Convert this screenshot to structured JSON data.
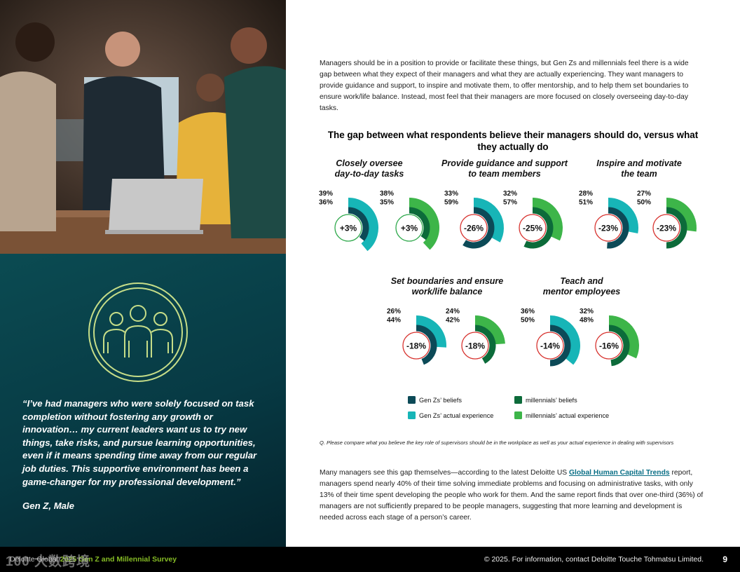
{
  "intro_text": "Managers should be in a position to provide or facilitate these things, but Gen Zs and millennials feel there is a wide gap between what they expect of their managers and what they are actually experiencing. They want managers to provide guidance and support, to inspire and motivate them, to offer mentorship, and to help them set boundaries to ensure work/life balance. Instead, most feel that their managers are more focused on closely overseeing day-to-day tasks.",
  "quote": "“I’ve had managers who were solely focused on task completion without fostering any growth or innovation… my current leaders want us to try new things, take risks, and pursue learning opportunities, even if it means spending time away from our regular job duties. This supportive environment has been a game-changer for my professional development.”",
  "quote_attribution": "Gen Z, Male",
  "question_note": "Q. Please compare what you believe the key role of supervisors should be in the workplace as well as your actual experience in dealing with supervisors",
  "closing": {
    "before_link": "Many managers see this gap themselves—according to the latest Deloitte US ",
    "link_text": "Global Human Capital Trends",
    "after_link": " report, managers spend nearly 40% of their time solving immediate problems and focusing on administrative tasks, with only 13% of their time spent developing the people who work for them. And the same report finds that over one-third (36%) of managers are not sufficiently prepared to be people managers, suggesting that more learning and development is needed across each stage of a person’s career."
  },
  "footer": {
    "brand": "Deloitte Global",
    "survey": "2025 Gen Z and Millennial Survey",
    "copyright": "© 2025. For information, contact Deloitte Touche Tohmatsu Limited.",
    "page": "9"
  },
  "watermark": "100 大数跨境",
  "colors": {
    "genz_beliefs": "#0c4a57",
    "genz_actual": "#17b5b7",
    "mill_beliefs": "#0c6b3a",
    "mill_actual": "#3db549",
    "positive_ring": "#2da84a",
    "negative_ring": "#d7322e",
    "left_panel": "#073a44",
    "icon_stroke": "#c6dd88"
  },
  "chart_data": {
    "type": "radial_bar",
    "title": "The gap between what respondents believe their managers should do, versus what they actually do",
    "max_value": 100,
    "legend": [
      {
        "key": "genz_beliefs",
        "label": "Gen Zs’ beliefs"
      },
      {
        "key": "mill_beliefs",
        "label": "millennials’ beliefs"
      },
      {
        "key": "genz_actual",
        "label": "Gen Zs’ actual experience"
      },
      {
        "key": "mill_actual",
        "label": "millennials’ actual experience"
      }
    ],
    "groups": [
      {
        "title": [
          "Closely oversee",
          "day-to-day tasks"
        ],
        "gen_z": {
          "actual": 39,
          "beliefs": 36,
          "gap": "+3%"
        },
        "millennials": {
          "actual": 38,
          "beliefs": 35,
          "gap": "+3%"
        }
      },
      {
        "title": [
          "Provide guidance and support",
          "to team members"
        ],
        "gen_z": {
          "actual": 33,
          "beliefs": 59,
          "gap": "-26%"
        },
        "millennials": {
          "actual": 32,
          "beliefs": 57,
          "gap": "-25%"
        }
      },
      {
        "title": [
          "Inspire and motivate",
          "the team"
        ],
        "gen_z": {
          "actual": 28,
          "beliefs": 51,
          "gap": "-23%"
        },
        "millennials": {
          "actual": 27,
          "beliefs": 50,
          "gap": "-23%"
        }
      },
      {
        "title": [
          "Set boundaries and ensure",
          "work/life balance"
        ],
        "gen_z": {
          "actual": 26,
          "beliefs": 44,
          "gap": "-18%"
        },
        "millennials": {
          "actual": 24,
          "beliefs": 42,
          "gap": "-18%"
        }
      },
      {
        "title": [
          "Teach and",
          "mentor employees"
        ],
        "gen_z": {
          "actual": 36,
          "beliefs": 50,
          "gap": "-14%"
        },
        "millennials": {
          "actual": 32,
          "beliefs": 48,
          "gap": "-16%"
        }
      }
    ]
  }
}
